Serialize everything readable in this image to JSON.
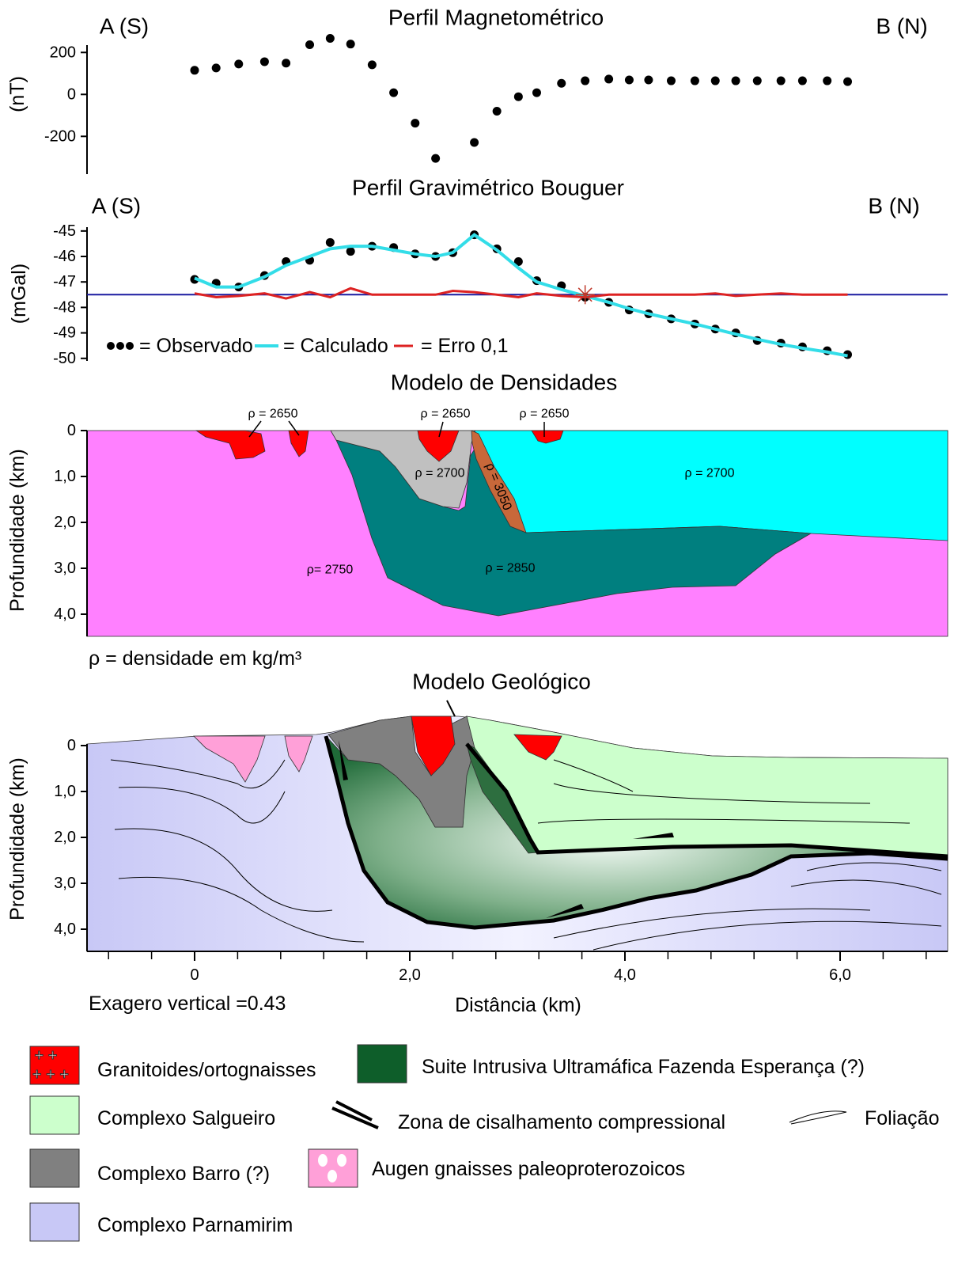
{
  "chart_data": [
    {
      "type": "scatter",
      "title": "Perfil Magnetométrico",
      "left_label": "A (S)",
      "right_label": "B (N)",
      "ylabel": "(nT)",
      "x": [
        0,
        0.2,
        0.41,
        0.65,
        0.85,
        1.07,
        1.26,
        1.45,
        1.65,
        1.85,
        2.05,
        2.24,
        2.6,
        2.81,
        3.01,
        3.18,
        3.41,
        3.63,
        3.85,
        4.04,
        4.22,
        4.43,
        4.65,
        4.84,
        5.03,
        5.23,
        5.45,
        5.65,
        5.88,
        6.07
      ],
      "values": [
        115,
        126,
        145,
        156,
        149,
        237,
        267,
        240,
        141,
        8,
        -137,
        -305,
        -229,
        -80,
        -11,
        8,
        53,
        65,
        73,
        69,
        69,
        65,
        65,
        65,
        65,
        65,
        65,
        65,
        65,
        61
      ],
      "color": "#000000",
      "xlim": [
        -1,
        7
      ],
      "ylim": [
        -380,
        235
      ],
      "yticks": [
        -200,
        0,
        200
      ]
    },
    {
      "type": "line",
      "title": "Perfil Gravimétrico Bouguer",
      "left_label": "A (S)",
      "right_label": "B (N)",
      "ylabel": "(mGal)",
      "x": [
        0,
        0.2,
        0.41,
        0.65,
        0.85,
        1.07,
        1.26,
        1.45,
        1.65,
        1.85,
        2.05,
        2.24,
        2.4,
        2.6,
        2.81,
        3.01,
        3.18,
        3.41,
        3.63,
        3.85,
        4.04,
        4.22,
        4.43,
        4.65,
        4.84,
        5.03,
        5.23,
        5.45,
        5.65,
        5.88,
        6.07
      ],
      "xlim": [
        -1,
        7
      ],
      "ylim": [
        -50.1,
        -44.85
      ],
      "yticks": [
        -50,
        -49,
        -48,
        -47,
        -46,
        -45
      ],
      "reference_line": {
        "value": -47.5,
        "color": "#1a1aa0"
      },
      "marker": {
        "x": 3.63,
        "y": -47.5,
        "color": "#c0392b"
      },
      "series": [
        {
          "name": "= Observado",
          "color": "#000000",
          "style": "dots",
          "values": [
            -46.9,
            -47.05,
            -47.2,
            -46.75,
            -46.2,
            -46.15,
            -45.45,
            -45.8,
            -45.6,
            -45.65,
            -45.9,
            -46.0,
            -45.85,
            -45.15,
            -45.7,
            -46.2,
            -46.95,
            -47.15,
            -47.6,
            -47.8,
            -48.1,
            -48.25,
            -48.45,
            -48.65,
            -48.85,
            -49.0,
            -49.3,
            -49.4,
            -49.55,
            -49.7,
            -49.85
          ]
        },
        {
          "name": "= Calculado",
          "color": "#33dde8",
          "style": "line",
          "values": [
            -46.85,
            -47.2,
            -47.2,
            -46.8,
            -46.35,
            -46.0,
            -45.7,
            -45.6,
            -45.6,
            -45.75,
            -45.9,
            -46.0,
            -45.85,
            -45.15,
            -45.75,
            -46.45,
            -47.0,
            -47.3,
            -47.55,
            -47.8,
            -48.05,
            -48.25,
            -48.45,
            -48.65,
            -48.85,
            -49.05,
            -49.25,
            -49.45,
            -49.6,
            -49.75,
            -49.9
          ]
        },
        {
          "name": "= Erro 0,1",
          "color": "#dd2222",
          "style": "line",
          "values": [
            -47.45,
            -47.6,
            -47.55,
            -47.45,
            -47.65,
            -47.4,
            -47.6,
            -47.25,
            -47.5,
            -47.5,
            -47.5,
            -47.5,
            -47.35,
            -47.4,
            -47.5,
            -47.6,
            -47.45,
            -47.55,
            -47.6,
            -47.5,
            -47.5,
            -47.5,
            -47.5,
            -47.5,
            -47.45,
            -47.55,
            -47.5,
            -47.45,
            -47.5,
            -47.5,
            -47.5
          ]
        }
      ]
    }
  ],
  "density_model": {
    "title": "Modelo de Densidades",
    "ylabel": "Profundidade (km)",
    "ylim": [
      0,
      4.5
    ],
    "yticks": [
      0,
      {
        "value": 1,
        "label": "1,0"
      },
      {
        "value": 2,
        "label": "2,0"
      },
      {
        "value": 3,
        "label": "3,0"
      },
      {
        "value": 4,
        "label": "4,0"
      }
    ],
    "labels": [
      "ρ = 2650",
      "ρ = 2650",
      "ρ = 2650",
      "ρ = 2700",
      "ρ = 3050",
      "ρ = 2700",
      "ρ= 2750",
      "ρ = 2850"
    ],
    "note": "ρ = densidade em kg/m³"
  },
  "geologic_model": {
    "title": "Modelo Geológico",
    "ylabel": "Profundidade (km)",
    "ylim": [
      0,
      4.5
    ],
    "yticks": [
      0,
      {
        "value": 1,
        "label": "1,0"
      },
      {
        "value": 2,
        "label": "2,0"
      },
      {
        "value": 3,
        "label": "3,0"
      },
      {
        "value": 4,
        "label": "4,0"
      }
    ],
    "xticks": [
      0,
      {
        "value": 2,
        "label": "2,0"
      },
      {
        "value": 4,
        "label": "4,0"
      },
      {
        "value": 6,
        "label": "6,0"
      }
    ],
    "xminor": [
      -0.8,
      -0.4,
      0.4,
      0.8,
      1.2,
      1.6,
      2.4,
      2.8,
      3.2,
      3.6,
      4.4,
      4.8,
      5.2,
      5.6,
      6.4,
      6.8
    ],
    "xlabel": "Distância (km)",
    "note": "Exagero vertical =0.43"
  },
  "legend": {
    "items": [
      "Granitoides/ortognaisses",
      "Suite Intrusiva Ultramáfica Fazenda Esperança (?)",
      "Complexo Salgueiro",
      "Zona de cisalhamento compressional",
      "Foliação",
      "Complexo Barro (?)",
      "Augen gnaisses paleoproterozoicos",
      "Complexo Parnamirim"
    ]
  }
}
